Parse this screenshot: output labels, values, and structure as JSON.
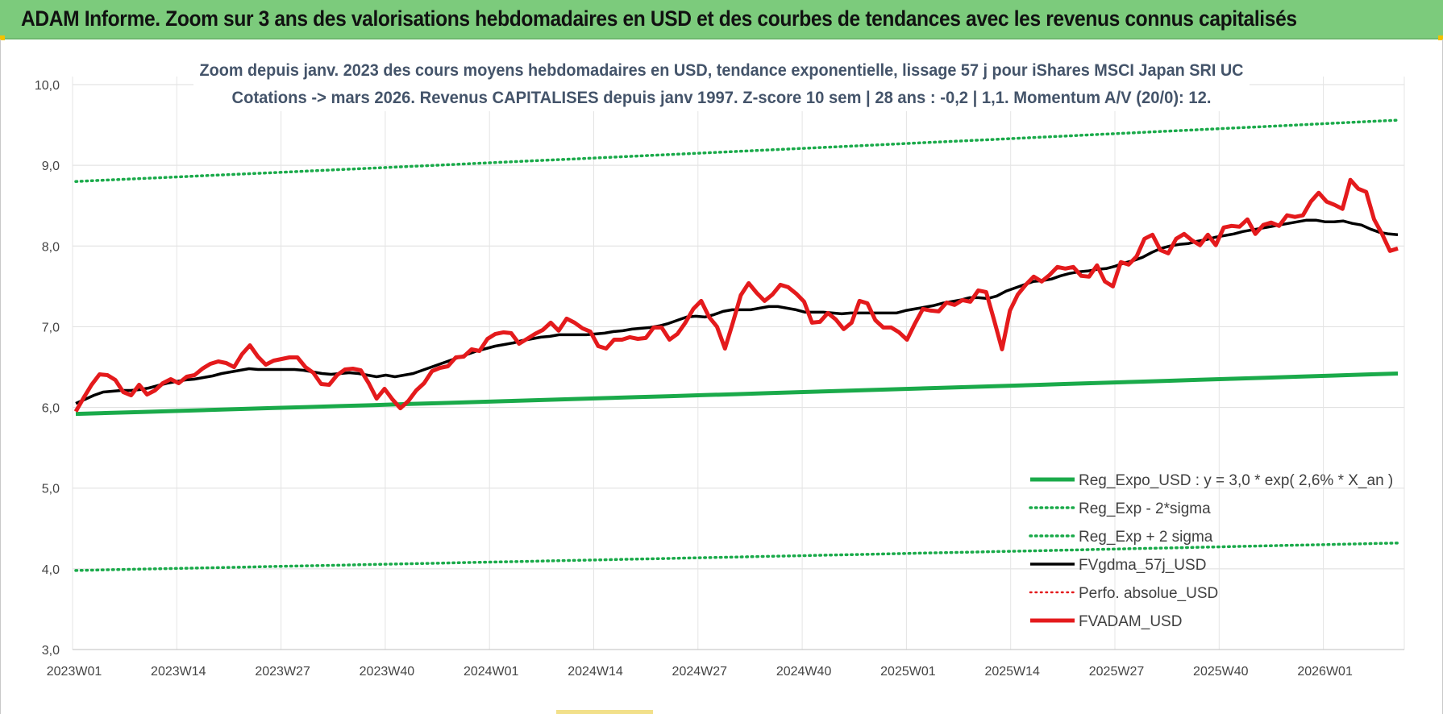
{
  "header": {
    "title": "ADAM Informe. Zoom sur 3 ans des valorisations hebdomadaires en USD et des courbes de tendances avec les revenus connus capitalisés",
    "bg_color": "#7ccb7c"
  },
  "chart_data": {
    "type": "line",
    "title_line1": "Zoom depuis janv. 2023 des cours moyens hebdomadaires en USD, tendance exponentielle, lissage 57 j pour iShares MSCI Japan SRI UC",
    "title_line2": "Cotations -> mars 2026. Revenus CAPITALISES depuis janv 1997. Z-score 10 sem | 28 ans : -0,2 | 1,1. Momentum A/V (20/0): 12.",
    "xlabel": "",
    "ylabel": "",
    "ylim": [
      3.0,
      10.0
    ],
    "y_ticks": [
      "3,0",
      "4,0",
      "5,0",
      "6,0",
      "7,0",
      "8,0",
      "9,0",
      "10,0"
    ],
    "x_ticks": [
      "2023W01",
      "2023W14",
      "2023W27",
      "2023W40",
      "2024W01",
      "2024W14",
      "2024W27",
      "2024W40",
      "2025W01",
      "2025W14",
      "2025W27",
      "2025W40",
      "2026W01"
    ],
    "grid": true,
    "legend_position": "bottom-right",
    "series": [
      {
        "name": "Reg_Expo_USD : y = 3,0 * exp( 2,6% * X_an )",
        "color": "#1aaa4a",
        "style": "thick",
        "start": 5.92,
        "end": 6.42
      },
      {
        "name": "Reg_Exp - 2*sigma",
        "color": "#1aaa4a",
        "style": "dotted",
        "start": 3.98,
        "end": 4.32
      },
      {
        "name": "Reg_Exp + 2 sigma",
        "color": "#1aaa4a",
        "style": "dotted",
        "start": 8.8,
        "end": 9.56
      },
      {
        "name": "FVgdma_57j_USD",
        "color": "#000000",
        "style": "solid",
        "values": [
          6.05,
          6.1,
          6.15,
          6.19,
          6.2,
          6.21,
          6.21,
          6.22,
          6.24,
          6.27,
          6.3,
          6.32,
          6.34,
          6.35,
          6.37,
          6.39,
          6.42,
          6.44,
          6.46,
          6.48,
          6.47,
          6.47,
          6.47,
          6.47,
          6.47,
          6.46,
          6.44,
          6.42,
          6.41,
          6.42,
          6.43,
          6.42,
          6.4,
          6.38,
          6.4,
          6.38,
          6.4,
          6.42,
          6.46,
          6.5,
          6.54,
          6.58,
          6.62,
          6.66,
          6.7,
          6.73,
          6.76,
          6.78,
          6.8,
          6.83,
          6.85,
          6.87,
          6.88,
          6.9,
          6.9,
          6.9,
          6.9,
          6.91,
          6.92,
          6.94,
          6.95,
          6.97,
          6.98,
          6.99,
          7.01,
          7.04,
          7.08,
          7.12,
          7.13,
          7.12,
          7.15,
          7.19,
          7.21,
          7.21,
          7.21,
          7.23,
          7.25,
          7.25,
          7.23,
          7.21,
          7.18,
          7.18,
          7.18,
          7.17,
          7.16,
          7.17,
          7.17,
          7.17,
          7.17,
          7.17,
          7.17,
          7.2,
          7.22,
          7.24,
          7.26,
          7.29,
          7.31,
          7.33,
          7.36,
          7.36,
          7.35,
          7.38,
          7.44,
          7.48,
          7.52,
          7.56,
          7.57,
          7.59,
          7.63,
          7.66,
          7.68,
          7.69,
          7.71,
          7.72,
          7.75,
          7.79,
          7.82,
          7.86,
          7.92,
          7.97,
          8.0,
          8.02,
          8.03,
          8.06,
          8.08,
          8.11,
          8.13,
          8.15,
          8.18,
          8.2,
          8.22,
          8.24,
          8.26,
          8.28,
          8.3,
          8.32,
          8.32,
          8.3,
          8.3,
          8.31,
          8.28,
          8.26,
          8.21,
          8.17,
          8.15,
          8.14
        ]
      },
      {
        "name": "Perfo. absolue_USD",
        "color": "#e41a1c",
        "style": "dotted",
        "values": []
      },
      {
        "name": "FVADAM_USD",
        "color": "#e41a1c",
        "style": "thick",
        "values": [
          5.95,
          6.12,
          6.28,
          6.41,
          6.4,
          6.34,
          6.19,
          6.15,
          6.28,
          6.16,
          6.21,
          6.3,
          6.35,
          6.3,
          6.38,
          6.4,
          6.48,
          6.54,
          6.57,
          6.55,
          6.5,
          6.66,
          6.77,
          6.63,
          6.53,
          6.58,
          6.6,
          6.62,
          6.62,
          6.5,
          6.43,
          6.29,
          6.28,
          6.4,
          6.47,
          6.48,
          6.46,
          6.3,
          6.11,
          6.23,
          6.1,
          5.99,
          6.08,
          6.21,
          6.3,
          6.45,
          6.49,
          6.51,
          6.62,
          6.63,
          6.72,
          6.7,
          6.85,
          6.91,
          6.93,
          6.92,
          6.79,
          6.85,
          6.91,
          6.96,
          7.05,
          6.95,
          7.1,
          7.05,
          6.98,
          6.94,
          6.76,
          6.73,
          6.84,
          6.84,
          6.87,
          6.85,
          6.86,
          6.99,
          6.99,
          6.84,
          6.91,
          7.05,
          7.22,
          7.32,
          7.12,
          7.0,
          6.73,
          7.05,
          7.39,
          7.54,
          7.42,
          7.32,
          7.4,
          7.52,
          7.49,
          7.41,
          7.31,
          7.05,
          7.06,
          7.17,
          7.09,
          6.97,
          7.05,
          7.32,
          7.29,
          7.08,
          6.99,
          6.99,
          6.93,
          6.84,
          7.04,
          7.22,
          7.2,
          7.19,
          7.3,
          7.27,
          7.33,
          7.31,
          7.45,
          7.43,
          7.08,
          6.72,
          7.2,
          7.4,
          7.52,
          7.62,
          7.56,
          7.64,
          7.74,
          7.72,
          7.74,
          7.63,
          7.62,
          7.76,
          7.56,
          7.5,
          7.8,
          7.77,
          7.87,
          8.09,
          8.14,
          7.95,
          7.91,
          8.09,
          8.15,
          8.07,
          8.01,
          8.14,
          8.01,
          8.23,
          8.25,
          8.24,
          8.33,
          8.15,
          8.26,
          8.29,
          8.25,
          8.38,
          8.36,
          8.38,
          8.55,
          8.66,
          8.55,
          8.51,
          8.46,
          8.82,
          8.71,
          8.67,
          8.33,
          8.15,
          7.94,
          7.97
        ]
      }
    ]
  }
}
